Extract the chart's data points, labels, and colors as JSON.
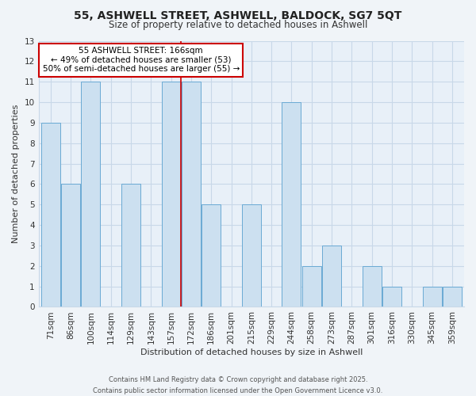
{
  "title_line1": "55, ASHWELL STREET, ASHWELL, BALDOCK, SG7 5QT",
  "title_line2": "Size of property relative to detached houses in Ashwell",
  "xlabel": "Distribution of detached houses by size in Ashwell",
  "ylabel": "Number of detached properties",
  "bar_labels": [
    "71sqm",
    "86sqm",
    "100sqm",
    "114sqm",
    "129sqm",
    "143sqm",
    "157sqm",
    "172sqm",
    "186sqm",
    "201sqm",
    "215sqm",
    "229sqm",
    "244sqm",
    "258sqm",
    "273sqm",
    "287sqm",
    "301sqm",
    "316sqm",
    "330sqm",
    "345sqm",
    "359sqm"
  ],
  "bar_heights": [
    9,
    6,
    11,
    0,
    6,
    0,
    11,
    11,
    5,
    0,
    5,
    0,
    10,
    2,
    3,
    0,
    2,
    1,
    0,
    1,
    1
  ],
  "bar_color": "#cce0f0",
  "bar_edge_color": "#6aaad4",
  "grid_color": "#c8d8e8",
  "background_color": "#f0f4f8",
  "plot_bg_color": "#e8f0f8",
  "annotation_text": "55 ASHWELL STREET: 166sqm\n← 49% of detached houses are smaller (53)\n50% of semi-detached houses are larger (55) →",
  "annotation_box_color": "#ffffff",
  "annotation_border_color": "#cc0000",
  "footer_line1": "Contains HM Land Registry data © Crown copyright and database right 2025.",
  "footer_line2": "Contains public sector information licensed under the Open Government Licence v3.0.",
  "ylim": [
    0,
    13
  ],
  "yticks": [
    0,
    1,
    2,
    3,
    4,
    5,
    6,
    7,
    8,
    9,
    10,
    11,
    12,
    13
  ],
  "red_line_x": 6.5,
  "title_fontsize": 10,
  "subtitle_fontsize": 8.5,
  "axis_label_fontsize": 8,
  "tick_fontsize": 7.5,
  "footer_fontsize": 6
}
